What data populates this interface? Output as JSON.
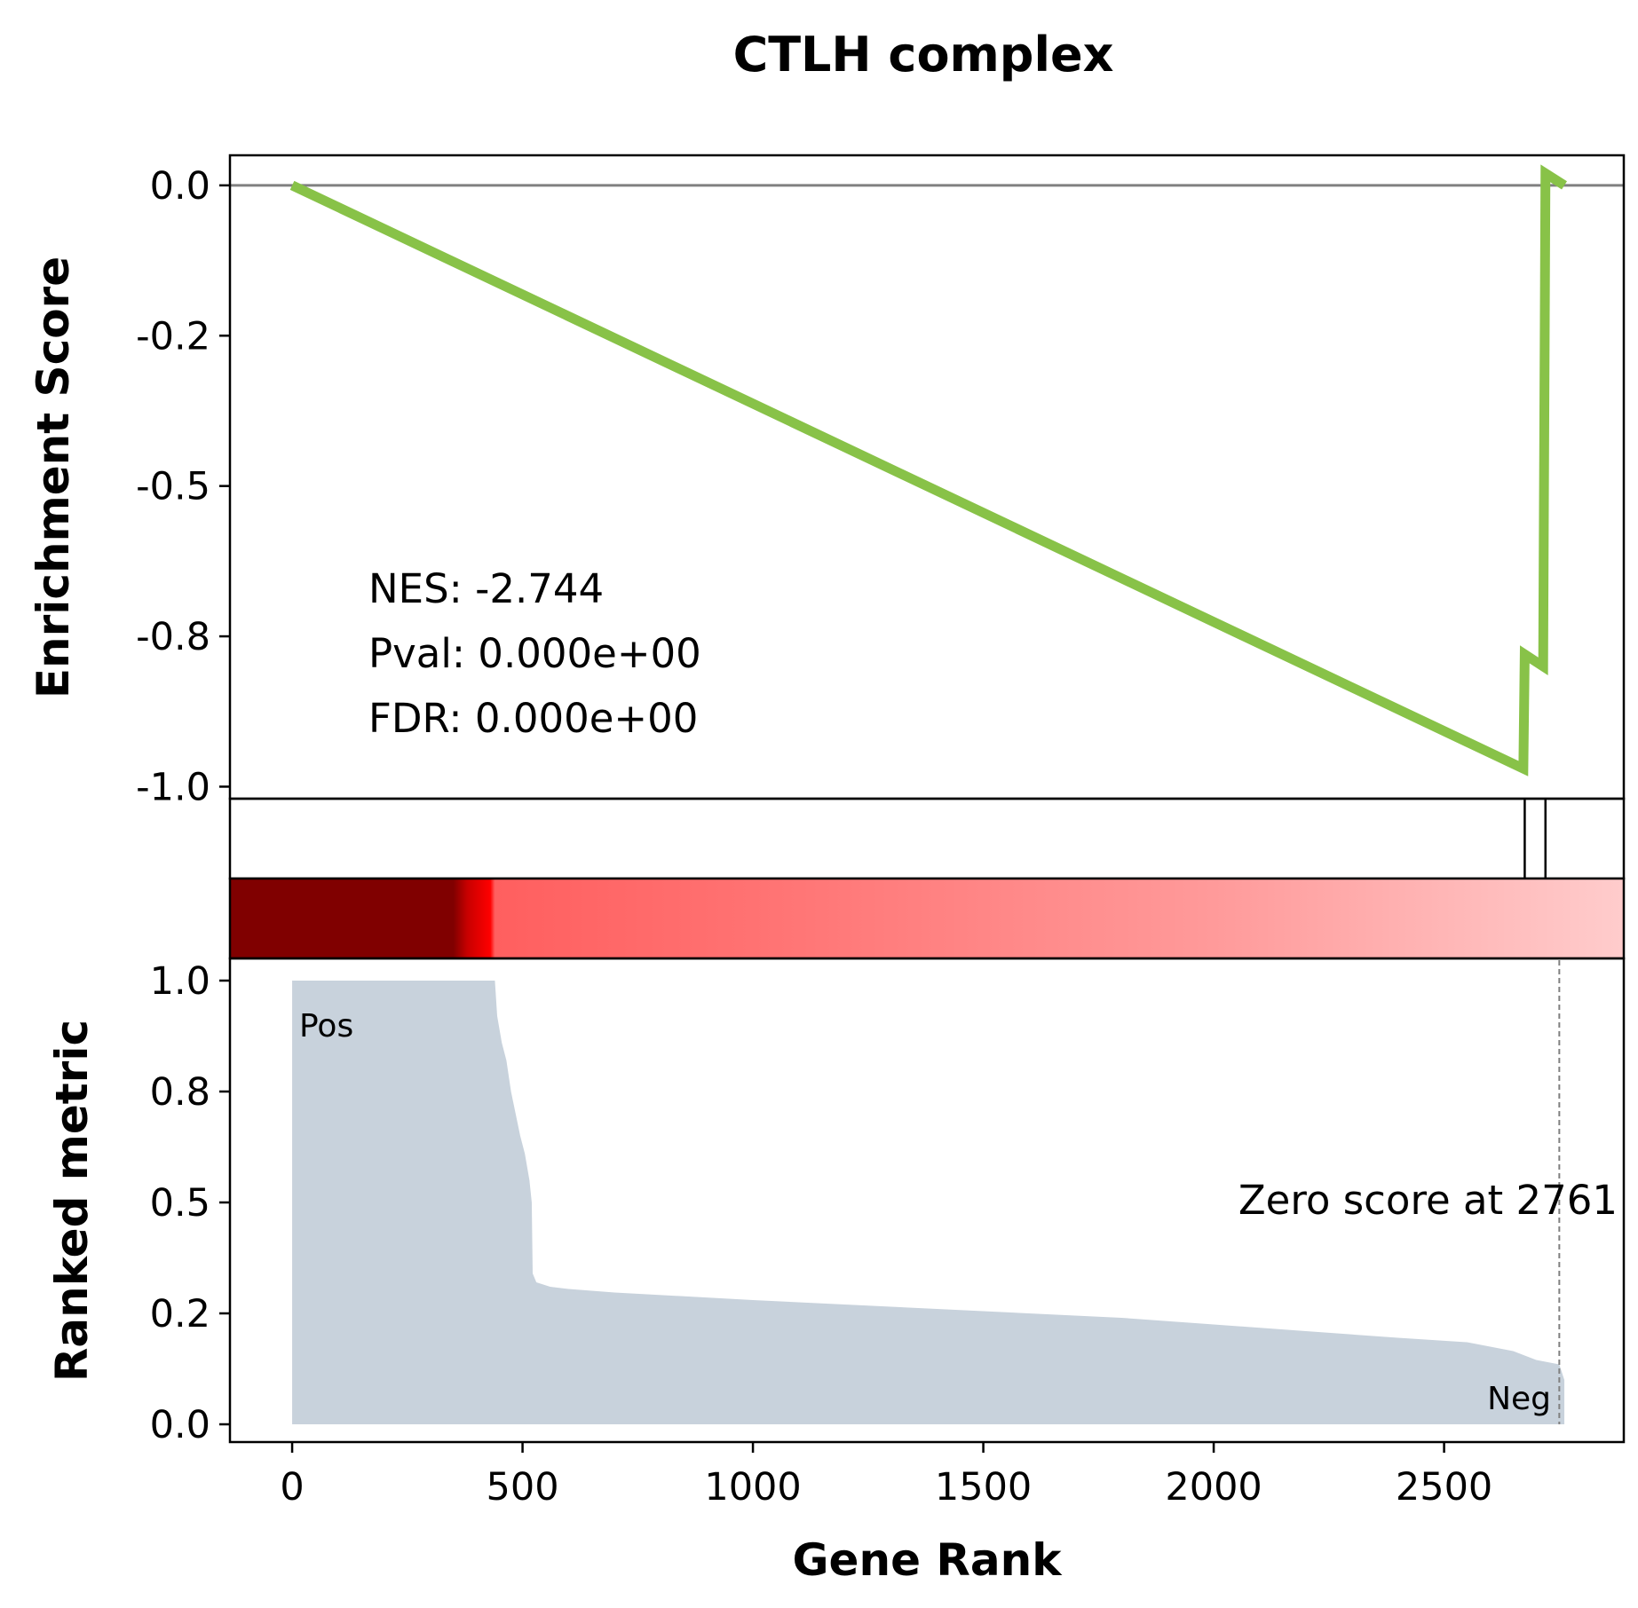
{
  "chart_data": {
    "type": "line",
    "title": "CTLH complex",
    "xlabel": "Gene Rank",
    "xlim": [
      -135,
      2890
    ],
    "xticks": [
      "0",
      "500",
      "1000",
      "1500",
      "2000",
      "2500"
    ],
    "xtick_values": [
      0,
      500,
      1000,
      1500,
      2000,
      2500
    ],
    "enrichment": {
      "ylabel": "Enrichment Score",
      "ylim": [
        -1.02,
        0.05
      ],
      "yticks": [
        "0.0",
        "-0.2",
        "-0.5",
        "-0.8",
        "-1.0"
      ],
      "ytick_values": [
        0.0,
        -0.25,
        -0.5,
        -0.75,
        -1.0
      ],
      "line_color": "#88c248",
      "points": [
        [
          0,
          0.0
        ],
        [
          2672,
          -0.97
        ],
        [
          2675,
          -0.78
        ],
        [
          2715,
          -0.8
        ],
        [
          2720,
          0.02
        ],
        [
          2761,
          0.0
        ]
      ],
      "stats": [
        "NES: -2.744",
        "Pval: 0.000e+00",
        "FDR: 0.000e+00"
      ]
    },
    "hits": [
      2675,
      2720
    ],
    "ranked": {
      "ylabel": "Ranked metric",
      "ylim": [
        -0.04,
        1.05
      ],
      "yticks": [
        "0.0",
        "0.2",
        "0.5",
        "0.8",
        "1.0"
      ],
      "ytick_values": [
        0.0,
        0.25,
        0.5,
        0.75,
        1.0
      ],
      "fill_color": "#c8d2dc",
      "points": [
        [
          0,
          1.0
        ],
        [
          440,
          1.0
        ],
        [
          445,
          0.92
        ],
        [
          455,
          0.86
        ],
        [
          465,
          0.82
        ],
        [
          475,
          0.75
        ],
        [
          485,
          0.7
        ],
        [
          495,
          0.65
        ],
        [
          505,
          0.61
        ],
        [
          515,
          0.55
        ],
        [
          520,
          0.5
        ],
        [
          522,
          0.34
        ],
        [
          530,
          0.32
        ],
        [
          560,
          0.31
        ],
        [
          600,
          0.305
        ],
        [
          700,
          0.297
        ],
        [
          1000,
          0.28
        ],
        [
          1300,
          0.265
        ],
        [
          1500,
          0.255
        ],
        [
          1800,
          0.24
        ],
        [
          2000,
          0.225
        ],
        [
          2200,
          0.21
        ],
        [
          2400,
          0.195
        ],
        [
          2550,
          0.185
        ],
        [
          2650,
          0.165
        ],
        [
          2700,
          0.145
        ],
        [
          2750,
          0.135
        ],
        [
          2761,
          0.1
        ]
      ],
      "zero_score_label": "Zero score at 2761",
      "zero_x": 2750,
      "pos_label": "Pos",
      "neg_label": "Neg",
      "pos_color": "#ff0000",
      "neg_color": "#0000ff"
    },
    "heatmap_stops": [
      {
        "at": 0,
        "color": "#800000"
      },
      {
        "at": 350,
        "color": "#800000"
      },
      {
        "at": 380,
        "color": "#c80000"
      },
      {
        "at": 430,
        "color": "#ff0000"
      },
      {
        "at": 440,
        "color": "#ff5f5f"
      },
      {
        "at": 1000,
        "color": "#ff7272"
      },
      {
        "at": 2000,
        "color": "#ff9a9a"
      },
      {
        "at": 2890,
        "color": "#ffcccc"
      }
    ]
  }
}
